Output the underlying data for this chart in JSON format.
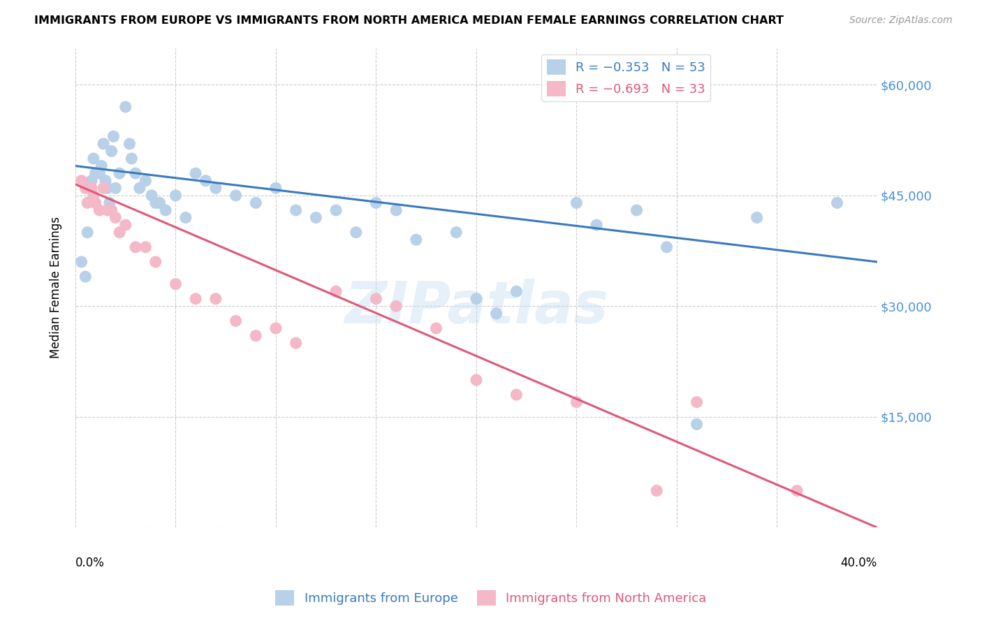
{
  "title": "IMMIGRANTS FROM EUROPE VS IMMIGRANTS FROM NORTH AMERICA MEDIAN FEMALE EARNINGS CORRELATION CHART",
  "source": "Source: ZipAtlas.com",
  "ylabel": "Median Female Earnings",
  "yticks": [
    0,
    15000,
    30000,
    45000,
    60000
  ],
  "xlim": [
    0.0,
    0.4
  ],
  "ylim": [
    0,
    65000
  ],
  "europe_color": "#b8d0e8",
  "europe_line_color": "#3a7abf",
  "northamerica_color": "#f4b8c8",
  "northamerica_line_color": "#e05878",
  "watermark": "ZIPatlas",
  "blue_scatter_x": [
    0.003,
    0.005,
    0.006,
    0.007,
    0.008,
    0.009,
    0.01,
    0.012,
    0.013,
    0.014,
    0.015,
    0.016,
    0.017,
    0.018,
    0.019,
    0.02,
    0.022,
    0.025,
    0.027,
    0.028,
    0.03,
    0.032,
    0.035,
    0.038,
    0.04,
    0.042,
    0.045,
    0.05,
    0.055,
    0.06,
    0.065,
    0.07,
    0.08,
    0.09,
    0.1,
    0.11,
    0.12,
    0.13,
    0.14,
    0.15,
    0.16,
    0.17,
    0.19,
    0.2,
    0.21,
    0.22,
    0.25,
    0.26,
    0.28,
    0.295,
    0.31,
    0.34,
    0.38
  ],
  "blue_scatter_y": [
    36000,
    34000,
    40000,
    46000,
    47000,
    50000,
    48000,
    48000,
    49000,
    52000,
    47000,
    46000,
    44000,
    51000,
    53000,
    46000,
    48000,
    57000,
    52000,
    50000,
    48000,
    46000,
    47000,
    45000,
    44000,
    44000,
    43000,
    45000,
    42000,
    48000,
    47000,
    46000,
    45000,
    44000,
    46000,
    43000,
    42000,
    43000,
    40000,
    44000,
    43000,
    39000,
    40000,
    31000,
    29000,
    32000,
    44000,
    41000,
    43000,
    38000,
    14000,
    42000,
    44000
  ],
  "pink_scatter_x": [
    0.003,
    0.005,
    0.006,
    0.008,
    0.009,
    0.01,
    0.012,
    0.014,
    0.016,
    0.018,
    0.02,
    0.022,
    0.025,
    0.03,
    0.035,
    0.04,
    0.05,
    0.06,
    0.07,
    0.08,
    0.09,
    0.1,
    0.11,
    0.13,
    0.15,
    0.16,
    0.18,
    0.2,
    0.22,
    0.25,
    0.29,
    0.31,
    0.36
  ],
  "pink_scatter_y": [
    47000,
    46000,
    44000,
    46000,
    45000,
    44000,
    43000,
    46000,
    43000,
    43000,
    42000,
    40000,
    41000,
    38000,
    38000,
    36000,
    33000,
    31000,
    31000,
    28000,
    26000,
    27000,
    25000,
    32000,
    31000,
    30000,
    27000,
    20000,
    18000,
    17000,
    5000,
    17000,
    5000
  ],
  "blue_line_x0": 0.0,
  "blue_line_y0": 49000,
  "blue_line_x1": 0.4,
  "blue_line_y1": 36000,
  "pink_line_x0": 0.0,
  "pink_line_y0": 46500,
  "pink_line_x1": 0.4,
  "pink_line_y1": 0
}
